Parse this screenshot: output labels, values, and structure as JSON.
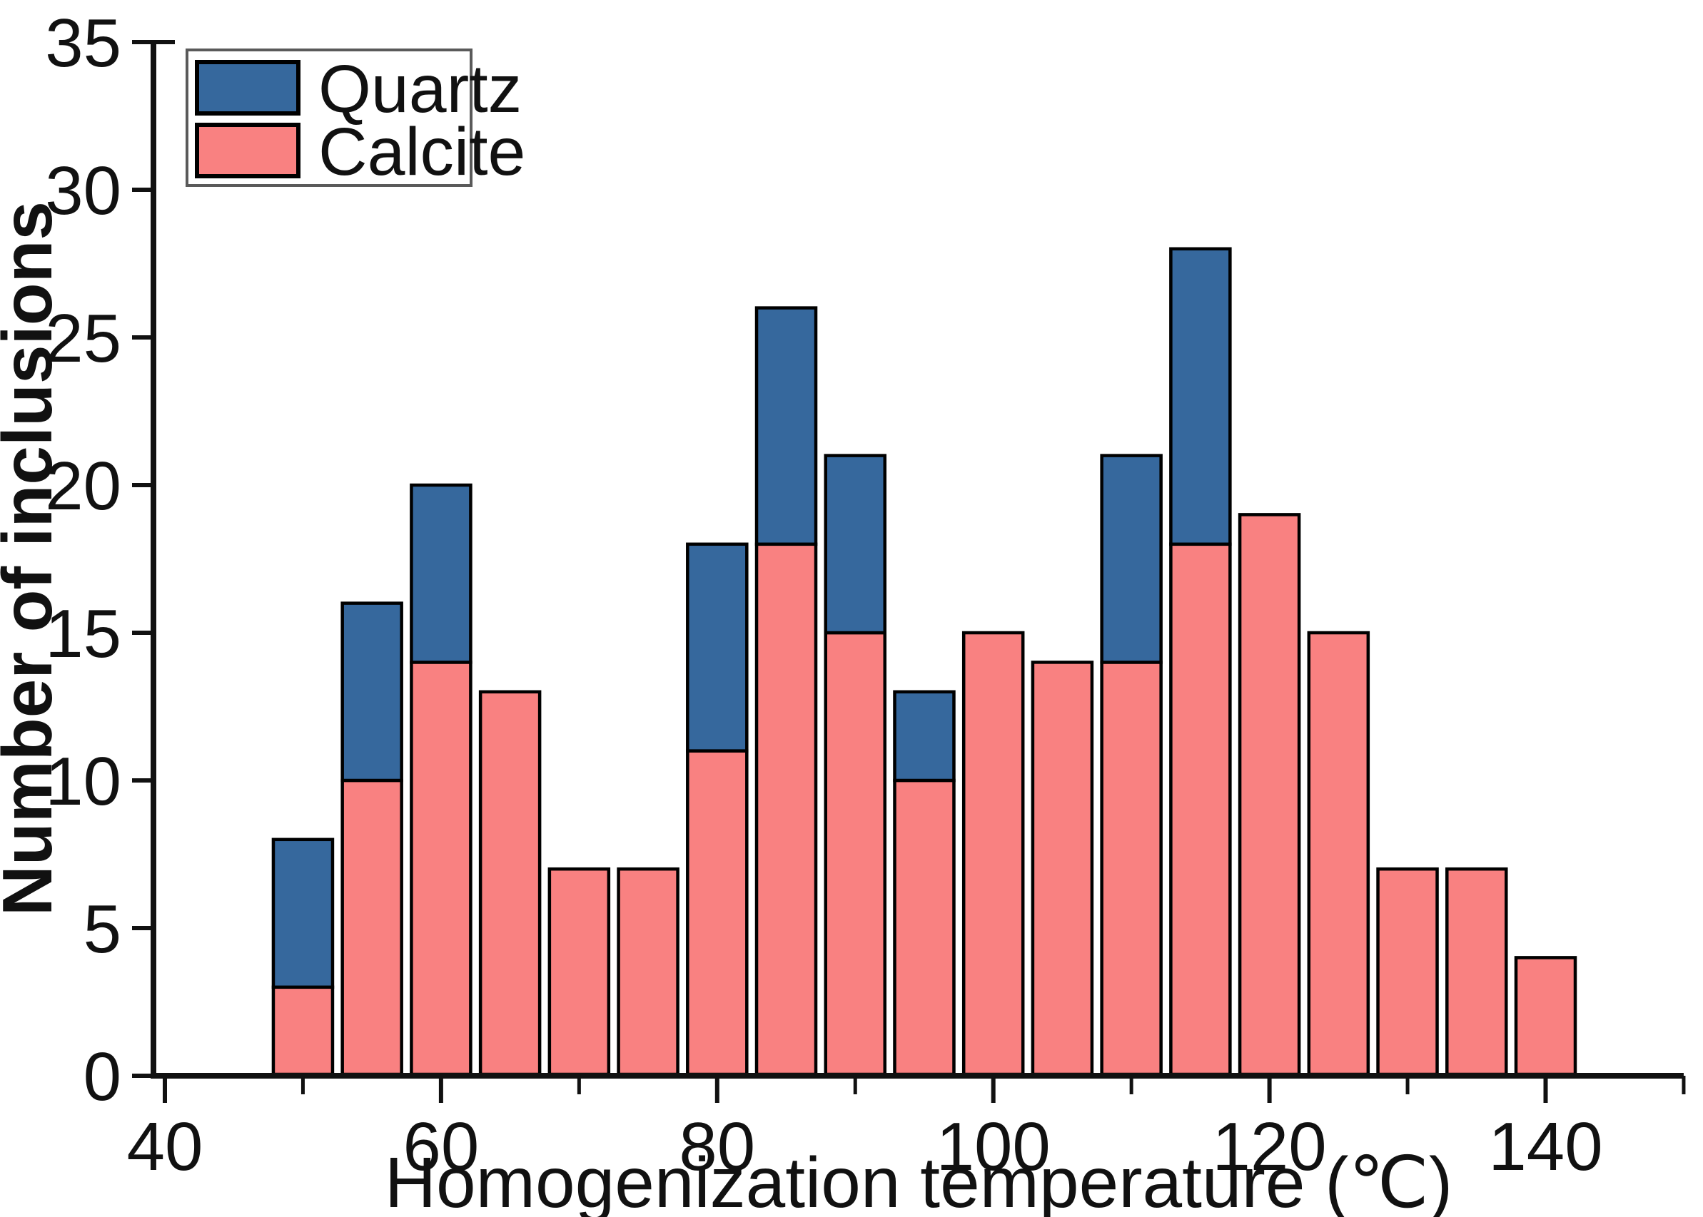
{
  "chart_data": {
    "type": "bar",
    "stacked": true,
    "title": "",
    "xlabel": "Homogenization temperature (℃)",
    "ylabel": "Number of inclusions",
    "bin_centers": [
      50,
      55,
      60,
      65,
      70,
      75,
      80,
      85,
      90,
      95,
      100,
      105,
      110,
      115,
      120,
      125,
      130,
      135,
      140
    ],
    "bin_width": 5,
    "series": [
      {
        "name": "Quartz",
        "color": "#36689D",
        "values": [
          5,
          6,
          6,
          0,
          0,
          0,
          7,
          8,
          6,
          3,
          0,
          0,
          7,
          10,
          0,
          0,
          0,
          0,
          0
        ]
      },
      {
        "name": "Calcite",
        "color": "#F98181",
        "values": [
          3,
          10,
          14,
          13,
          7,
          7,
          11,
          18,
          15,
          10,
          15,
          14,
          14,
          18,
          19,
          15,
          7,
          7,
          4
        ]
      }
    ],
    "totals": [
      8,
      16,
      20,
      13,
      7,
      7,
      18,
      26,
      21,
      13,
      15,
      14,
      21,
      28,
      19,
      15,
      7,
      7,
      4
    ],
    "xlim": [
      38.9,
      150
    ],
    "ylim": [
      0,
      35
    ],
    "x_ticks_labeled": [
      40,
      60,
      80,
      100,
      120,
      140
    ],
    "x_ticks_minor": [
      50,
      70,
      90,
      110,
      130,
      150
    ],
    "y_ticks": [
      0,
      5,
      10,
      15,
      20,
      25,
      30,
      35
    ],
    "legend": {
      "position": "top-left",
      "entries": [
        "Quartz",
        "Calcite"
      ]
    },
    "styles": {
      "bar_outline": "#000000",
      "axis_color": "#111111",
      "legend_border": "#5a5a5a",
      "background": "#ffffff",
      "grid": "off"
    }
  }
}
